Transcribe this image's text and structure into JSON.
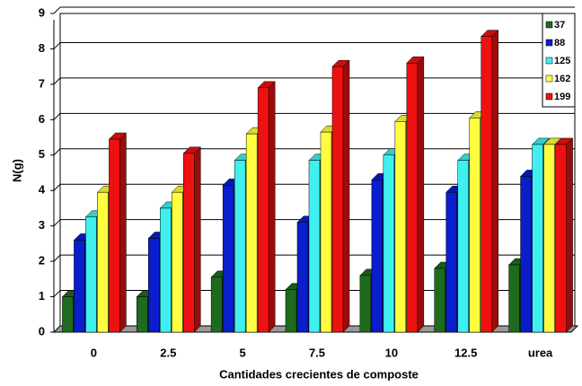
{
  "chart_data": {
    "type": "bar3d",
    "x_label": "Cantidades crecientes de composte",
    "y_label": "N(g)",
    "categories": [
      "0",
      "2.5",
      "5",
      "7.5",
      "10",
      "12.5",
      "urea"
    ],
    "series": [
      {
        "name": "37",
        "color": "#1e6b1e",
        "values": [
          1.0,
          1.0,
          1.55,
          1.2,
          1.6,
          1.8,
          1.9
        ]
      },
      {
        "name": "88",
        "color": "#0a1ecc",
        "values": [
          2.6,
          2.65,
          4.15,
          3.1,
          4.3,
          3.95,
          4.4
        ]
      },
      {
        "name": "125",
        "color": "#40f0f0",
        "values": [
          3.25,
          3.5,
          4.85,
          4.85,
          5.0,
          4.85,
          5.3
        ]
      },
      {
        "name": "162",
        "color": "#ffff40",
        "values": [
          3.95,
          3.95,
          5.6,
          5.65,
          5.95,
          6.05,
          5.3
        ]
      },
      {
        "name": "199",
        "color": "#ee1111",
        "values": [
          5.45,
          5.05,
          6.9,
          7.5,
          7.6,
          8.35,
          5.3
        ]
      }
    ],
    "ylim": [
      0,
      9
    ],
    "yticks": [
      0,
      1,
      2,
      3,
      4,
      5,
      6,
      7,
      8,
      9
    ],
    "grid": true,
    "legend": "top-right"
  }
}
